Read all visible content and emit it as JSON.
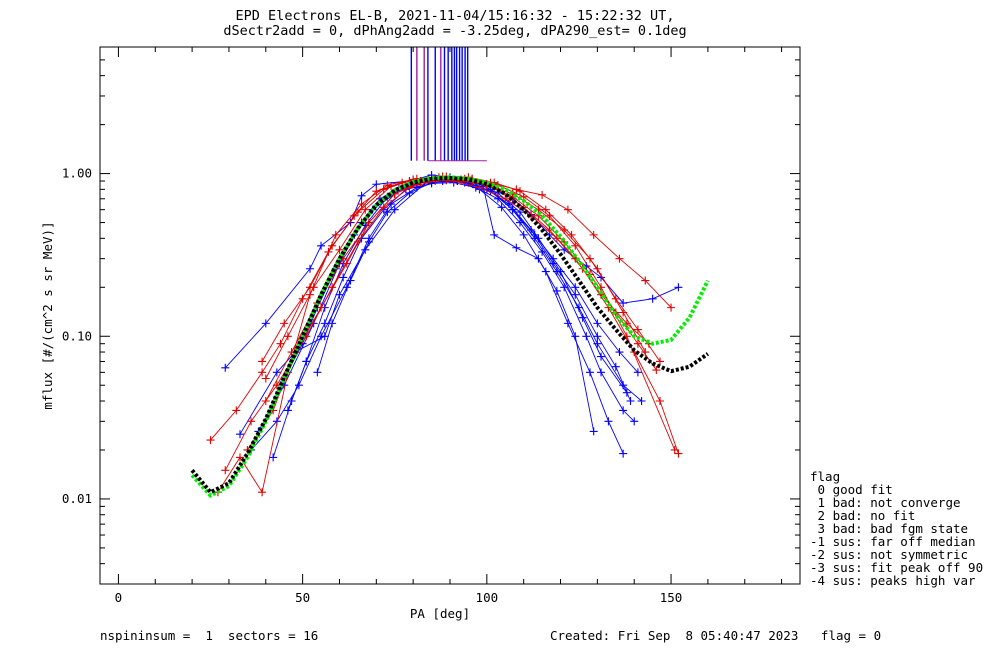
{
  "header": {
    "title_line1": "EPD Electrons EL-B, 2021-11-04/15:16:32 - 15:22:32 UT,",
    "title_line2": "dSectr2add = 0, dPhAng2add = -3.25deg, dPA290_est=   0.1deg"
  },
  "footer": {
    "left": "nspininsum =  1  sectors = 16",
    "right": "Created: Fri Sep  8 05:40:47 2023   flag = 0"
  },
  "legend": {
    "title": "flag",
    "items": [
      " 0 good fit",
      " 1 bad: not converge",
      " 2 bad: no fit",
      " 3 bad: bad fgm state",
      "-1 sus: far off median",
      "-2 sus: not symmetric",
      "-3 sus: fit peak off 90",
      "-4 sus: peaks high var"
    ]
  },
  "colors": {
    "blue_series": "#0000ff",
    "red_series": "#e00000",
    "green_fit": "#00ee00",
    "black_fit": "#000000",
    "purple_spikes": "#a020a0"
  },
  "chart_data": {
    "type": "line",
    "xlabel": "PA [deg]",
    "ylabel": "mflux [#/(cm^2 s sr MeV)]",
    "xlim": [
      -5,
      185
    ],
    "ylim": [
      0.003,
      6
    ],
    "y_scale": "log",
    "x_ticks": [
      0,
      50,
      100,
      150
    ],
    "x_tick_labels": [
      "0",
      "50",
      "100",
      "150"
    ],
    "y_ticks": [
      0.01,
      0.1,
      1.0
    ],
    "y_tick_labels": [
      "0.01",
      "0.10",
      "1.00"
    ],
    "legend_placement": "outside-right",
    "series": [
      {
        "color": "blue",
        "x": [
          29,
          40,
          52,
          55,
          63,
          66,
          70,
          79,
          85,
          90,
          96,
          100,
          107,
          112,
          117,
          121,
          127,
          131,
          137,
          145,
          152
        ],
        "y": [
          0.064,
          0.12,
          0.26,
          0.36,
          0.5,
          0.73,
          0.86,
          0.9,
          0.98,
          0.95,
          0.93,
          0.86,
          0.7,
          0.56,
          0.42,
          0.34,
          0.27,
          0.23,
          0.16,
          0.17,
          0.2
        ]
      },
      {
        "color": "blue",
        "x": [
          33,
          43,
          48,
          56,
          60,
          67,
          75,
          84,
          90,
          96,
          101,
          107,
          113,
          119,
          125,
          130,
          137,
          142
        ],
        "y": [
          0.025,
          0.06,
          0.08,
          0.1,
          0.18,
          0.34,
          0.6,
          0.9,
          0.92,
          0.9,
          0.8,
          0.6,
          0.4,
          0.25,
          0.15,
          0.09,
          0.05,
          0.04
        ]
      },
      {
        "color": "blue",
        "x": [
          36,
          43,
          49,
          55,
          62,
          68,
          74,
          81,
          88,
          94,
          100,
          106,
          112,
          118,
          124,
          130,
          136,
          141
        ],
        "y": [
          0.02,
          0.03,
          0.05,
          0.1,
          0.2,
          0.4,
          0.65,
          0.82,
          0.9,
          0.88,
          0.8,
          0.65,
          0.45,
          0.3,
          0.2,
          0.12,
          0.08,
          0.06
        ]
      },
      {
        "color": "blue",
        "x": [
          42,
          47,
          51,
          56,
          61,
          66,
          72,
          78,
          85,
          91,
          97,
          103,
          109,
          115,
          121,
          127,
          131,
          137,
          140
        ],
        "y": [
          0.018,
          0.04,
          0.07,
          0.12,
          0.23,
          0.4,
          0.6,
          0.8,
          0.87,
          0.88,
          0.82,
          0.7,
          0.5,
          0.33,
          0.2,
          0.1,
          0.06,
          0.035,
          0.03
        ]
      },
      {
        "color": "blue",
        "x": [
          44,
          50,
          54,
          59,
          64,
          69,
          75,
          81,
          86,
          92,
          98,
          104,
          110,
          116,
          122,
          128,
          133,
          137
        ],
        "y": [
          0.05,
          0.09,
          0.15,
          0.26,
          0.42,
          0.6,
          0.75,
          0.86,
          0.92,
          0.9,
          0.8,
          0.62,
          0.42,
          0.25,
          0.12,
          0.06,
          0.03,
          0.019
        ]
      },
      {
        "color": "blue",
        "x": [
          54,
          58,
          63,
          68,
          73,
          79,
          85,
          92,
          98,
          103,
          109,
          114,
          120,
          126,
          131,
          138
        ],
        "y": [
          0.06,
          0.12,
          0.22,
          0.38,
          0.58,
          0.76,
          0.88,
          0.9,
          0.86,
          0.76,
          0.58,
          0.4,
          0.25,
          0.13,
          0.075,
          0.045
        ]
      },
      {
        "color": "blue",
        "x": [
          46,
          51,
          56,
          61,
          67,
          73,
          79,
          86,
          92,
          99,
          102,
          108,
          114,
          119,
          124,
          129
        ],
        "y": [
          0.035,
          0.07,
          0.15,
          0.28,
          0.48,
          0.72,
          0.85,
          0.93,
          0.9,
          0.83,
          0.42,
          0.35,
          0.3,
          0.19,
          0.1,
          0.026
        ]
      },
      {
        "color": "blue",
        "x": [
          38,
          45,
          53,
          60,
          66,
          71,
          77,
          83,
          89,
          95,
          101,
          107,
          113,
          118,
          124,
          130,
          135,
          139
        ],
        "y": [
          0.026,
          0.05,
          0.12,
          0.28,
          0.5,
          0.7,
          0.84,
          0.9,
          0.91,
          0.88,
          0.78,
          0.6,
          0.42,
          0.28,
          0.18,
          0.1,
          0.065,
          0.04
        ]
      },
      {
        "color": "red",
        "x": [
          27,
          33,
          39,
          46,
          52,
          59,
          66,
          73,
          80,
          87,
          94,
          101,
          108,
          115,
          122,
          129,
          136,
          143,
          150
        ],
        "y": [
          0.011,
          0.018,
          0.011,
          0.06,
          0.18,
          0.42,
          0.65,
          0.85,
          0.92,
          0.95,
          0.93,
          0.88,
          0.8,
          0.74,
          0.6,
          0.42,
          0.3,
          0.22,
          0.15
        ]
      },
      {
        "color": "red",
        "x": [
          25,
          32,
          39,
          44,
          50,
          57,
          64,
          70,
          77,
          84,
          91,
          98,
          105,
          112,
          119,
          126,
          133,
          140,
          147,
          152
        ],
        "y": [
          0.023,
          0.035,
          0.06,
          0.09,
          0.17,
          0.33,
          0.55,
          0.78,
          0.88,
          0.92,
          0.9,
          0.82,
          0.7,
          0.55,
          0.4,
          0.26,
          0.15,
          0.08,
          0.04,
          0.019
        ]
      },
      {
        "color": "red",
        "x": [
          39,
          45,
          52,
          58,
          65,
          72,
          79,
          86,
          93,
          100,
          107,
          114,
          121,
          128,
          135,
          141,
          147
        ],
        "y": [
          0.07,
          0.12,
          0.2,
          0.36,
          0.58,
          0.8,
          0.9,
          0.93,
          0.9,
          0.85,
          0.75,
          0.6,
          0.45,
          0.3,
          0.17,
          0.11,
          0.07
        ]
      },
      {
        "color": "red",
        "x": [
          35,
          42,
          48,
          55,
          62,
          68,
          75,
          82,
          89,
          96,
          103,
          110,
          117,
          124,
          131,
          138,
          144
        ],
        "y": [
          0.02,
          0.035,
          0.08,
          0.15,
          0.28,
          0.5,
          0.75,
          0.88,
          0.92,
          0.9,
          0.8,
          0.62,
          0.45,
          0.3,
          0.18,
          0.12,
          0.09
        ]
      },
      {
        "color": "red",
        "x": [
          40,
          46,
          53,
          60,
          67,
          74,
          81,
          88,
          95,
          102,
          109,
          116,
          123,
          130,
          137,
          143
        ],
        "y": [
          0.055,
          0.1,
          0.2,
          0.34,
          0.6,
          0.84,
          0.93,
          0.96,
          0.95,
          0.88,
          0.78,
          0.6,
          0.42,
          0.26,
          0.14,
          0.08
        ]
      },
      {
        "color": "red",
        "x": [
          29,
          36,
          43,
          51,
          58,
          65,
          72,
          79,
          86,
          93,
          100,
          107,
          114,
          121,
          128,
          135,
          141,
          146
        ],
        "y": [
          0.015,
          0.03,
          0.05,
          0.1,
          0.2,
          0.38,
          0.62,
          0.82,
          0.9,
          0.92,
          0.86,
          0.72,
          0.55,
          0.38,
          0.24,
          0.14,
          0.09,
          0.062
        ]
      },
      {
        "color": "red",
        "x": [
          40,
          47,
          54,
          61,
          68,
          75,
          82,
          89,
          96,
          103,
          110,
          117,
          124,
          131,
          138,
          151
        ],
        "y": [
          0.04,
          0.08,
          0.16,
          0.3,
          0.5,
          0.75,
          0.9,
          0.96,
          0.93,
          0.85,
          0.72,
          0.55,
          0.36,
          0.2,
          0.1,
          0.02
        ]
      }
    ],
    "fits": [
      {
        "color": "green",
        "x": [
          20,
          25,
          30,
          35,
          40,
          45,
          50,
          55,
          60,
          65,
          70,
          75,
          80,
          85,
          90,
          95,
          100,
          105,
          110,
          115,
          120,
          125,
          130,
          135,
          140,
          145,
          150,
          155,
          160
        ],
        "y": [
          0.014,
          0.0105,
          0.012,
          0.018,
          0.03,
          0.055,
          0.1,
          0.18,
          0.3,
          0.46,
          0.64,
          0.79,
          0.89,
          0.94,
          0.95,
          0.93,
          0.88,
          0.8,
          0.68,
          0.55,
          0.41,
          0.29,
          0.2,
          0.135,
          0.1,
          0.09,
          0.095,
          0.13,
          0.22
        ]
      },
      {
        "color": "black",
        "x": [
          20,
          25,
          30,
          35,
          40,
          45,
          50,
          55,
          60,
          65,
          70,
          75,
          80,
          85,
          90,
          95,
          100,
          105,
          110,
          115,
          120,
          125,
          130,
          135,
          140,
          145,
          150,
          155,
          160
        ],
        "y": [
          0.015,
          0.011,
          0.0125,
          0.019,
          0.031,
          0.056,
          0.1,
          0.18,
          0.3,
          0.46,
          0.64,
          0.79,
          0.88,
          0.93,
          0.94,
          0.92,
          0.86,
          0.75,
          0.6,
          0.45,
          0.32,
          0.22,
          0.15,
          0.11,
          0.082,
          0.068,
          0.061,
          0.065,
          0.078
        ]
      }
    ],
    "spikes": {
      "blue_x": [
        79.5,
        84,
        86,
        88.5,
        89.5,
        90.5,
        91.2,
        91.8,
        92.6,
        93.3,
        94.1,
        94.8
      ],
      "purple_x": [
        81,
        83,
        87.5
      ]
    }
  }
}
